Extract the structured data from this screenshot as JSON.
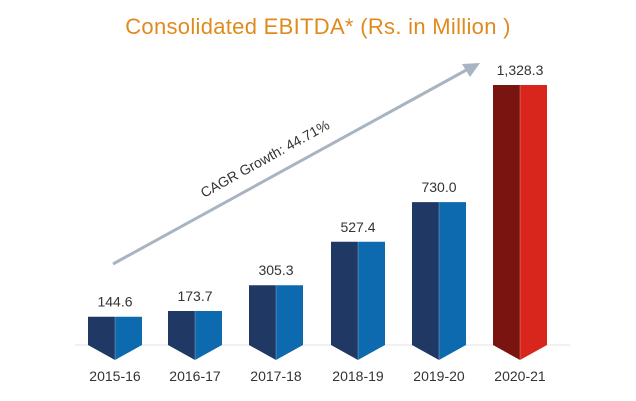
{
  "chart_data": {
    "type": "bar",
    "title": "Consolidated EBITDA* (Rs. in Million )",
    "categories": [
      "2015-16",
      "2016-17",
      "2017-18",
      "2018-19",
      "2019-20",
      "2020-21"
    ],
    "values": [
      144.6,
      173.7,
      305.3,
      527.4,
      730.0,
      1328.3
    ],
    "value_labels": [
      "144.6",
      "173.7",
      "305.3",
      "527.4",
      "730.0",
      "1,328.3"
    ],
    "annotation": "CAGR Growth: 44.71%",
    "colors": {
      "bar_front": "#0D6AAE",
      "bar_side": "#1F3864",
      "highlight_front": "#D9261C",
      "highlight_side": "#7A1410",
      "arrow": "#A8B4C2",
      "title": "#E08A1E"
    },
    "highlight_index": 5
  }
}
